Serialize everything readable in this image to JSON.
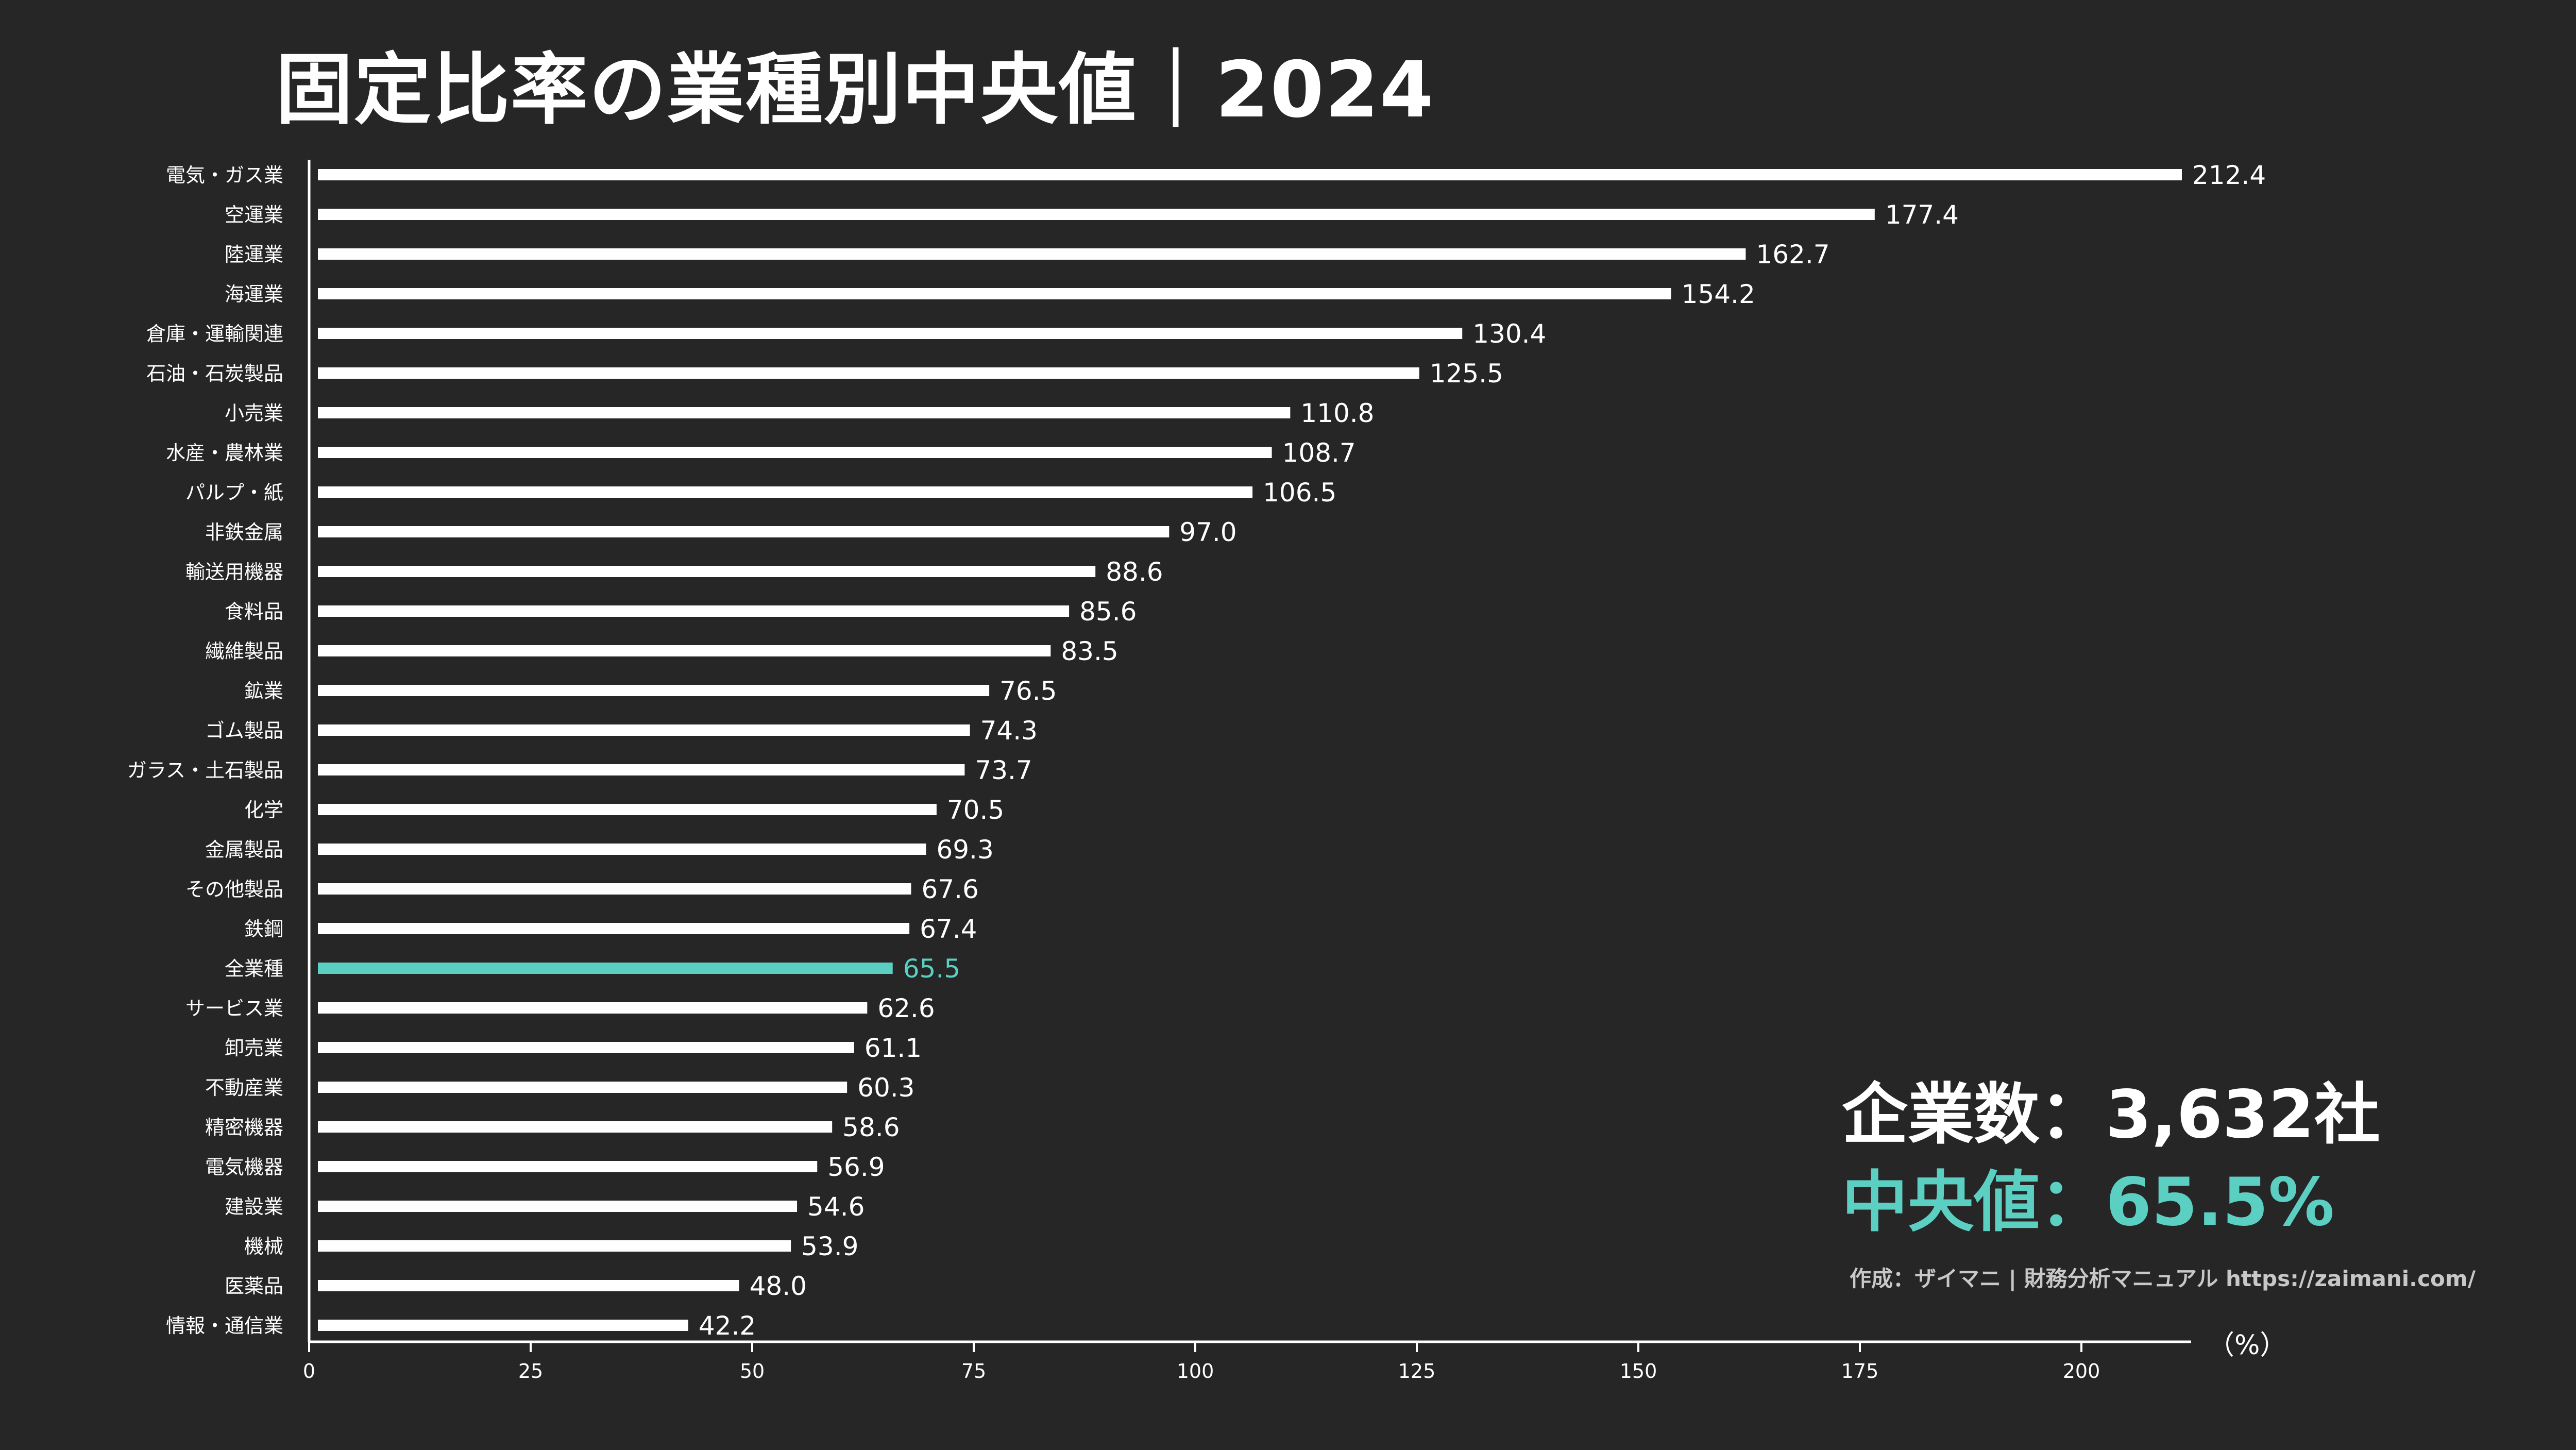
{
  "title": "固定比率の業種別中央値｜2024",
  "info": {
    "count": "企業数：3,632社",
    "median": "中央値：65.5%",
    "credit": "作成：ザイマニ | 財務分析マニュアル https://zaimani.com/"
  },
  "colors": {
    "bar": "#ffffff",
    "highlight": "#5bcfc2",
    "background": "#262626"
  },
  "chart_data": {
    "type": "bar",
    "orientation": "horizontal",
    "unit_label": "（%）",
    "categories": [
      "電気・ガス業",
      "空運業",
      "陸運業",
      "海運業",
      "倉庫・運輸関連",
      "石油・石炭製品",
      "小売業",
      "水産・農林業",
      "パルプ・紙",
      "非鉄金属",
      "輸送用機器",
      "食料品",
      "繊維製品",
      "鉱業",
      "ゴム製品",
      "ガラス・土石製品",
      "化学",
      "金属製品",
      "その他製品",
      "鉄鋼",
      "全業種",
      "サービス業",
      "卸売業",
      "不動産業",
      "精密機器",
      "電気機器",
      "建設業",
      "機械",
      "医薬品",
      "情報・通信業"
    ],
    "values": [
      212.4,
      177.4,
      162.7,
      154.2,
      130.4,
      125.5,
      110.8,
      108.7,
      106.5,
      97.0,
      88.6,
      85.6,
      83.5,
      76.5,
      74.3,
      73.7,
      70.5,
      69.3,
      67.6,
      67.4,
      65.5,
      62.6,
      61.1,
      60.3,
      58.6,
      56.9,
      54.6,
      53.9,
      48.0,
      42.2
    ],
    "value_labels": [
      "212.4",
      "177.4",
      "162.7",
      "154.2",
      "130.4",
      "125.5",
      "110.8",
      "108.7",
      "106.5",
      "97.0",
      "88.6",
      "85.6",
      "83.5",
      "76.5",
      "74.3",
      "73.7",
      "70.5",
      "69.3",
      "67.6",
      "67.4",
      "65.5",
      "62.6",
      "61.1",
      "60.3",
      "58.6",
      "56.9",
      "54.6",
      "53.9",
      "48.0",
      "42.2"
    ],
    "highlight_category": "全業種",
    "xlim": [
      0,
      212.4
    ],
    "xticks": [
      0,
      25,
      50,
      75,
      100,
      125,
      150,
      175,
      200
    ],
    "grid": false
  }
}
